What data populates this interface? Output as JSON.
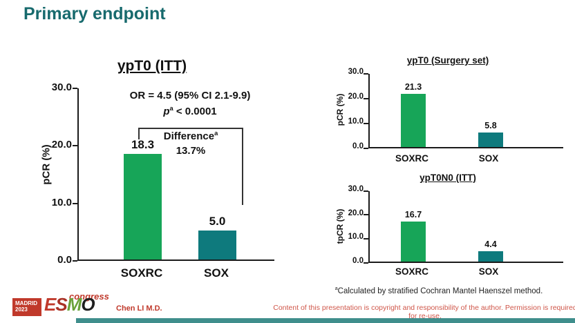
{
  "title": "Primary endpoint",
  "colors": {
    "accent_teal": "#176a6d",
    "bar_green": "#17a558",
    "bar_teal": "#0e7a7d",
    "red_text": "#c0392b"
  },
  "chart_data": [
    {
      "type": "bar",
      "title": "ypT0 (ITT)",
      "ylabel": "pCR (%)",
      "categories": [
        "SOXRC",
        "SOX"
      ],
      "values": [
        18.3,
        5.0
      ],
      "value_labels": [
        "18.3",
        "5.0"
      ],
      "ylim": [
        0,
        30
      ],
      "ytick_labels": [
        "30.0",
        "20.0",
        "10.0",
        "0.0"
      ],
      "bar_colors": [
        "#17a558",
        "#0e7a7d"
      ],
      "annotations": {
        "or_line": "OR = 4.5 (95% CI 2.1-9.9)",
        "p_prefix": "p",
        "p_sup": "a",
        "p_rest": " < 0.0001",
        "difference_label": "Difference",
        "difference_sup": "a",
        "difference_value": "13.7%"
      }
    },
    {
      "type": "bar",
      "title": "ypT0 (Surgery set)",
      "ylabel": "pCR (%)",
      "categories": [
        "SOXRC",
        "SOX"
      ],
      "values": [
        21.3,
        5.8
      ],
      "value_labels": [
        "21.3",
        "5.8"
      ],
      "ylim": [
        0,
        30
      ],
      "ytick_labels": [
        "30.0",
        "20.0",
        "10.0",
        "0.0"
      ],
      "bar_colors": [
        "#17a558",
        "#0e7a7d"
      ]
    },
    {
      "type": "bar",
      "title": "ypT0N0 (ITT)",
      "ylabel": "tpCR (%)",
      "categories": [
        "SOXRC",
        "SOX"
      ],
      "values": [
        16.7,
        4.4
      ],
      "value_labels": [
        "16.7",
        "4.4"
      ],
      "ylim": [
        0,
        30
      ],
      "ytick_labels": [
        "30.0",
        "20.0",
        "10.0",
        "0.0"
      ],
      "bar_colors": [
        "#17a558",
        "#0e7a7d"
      ]
    }
  ],
  "footnote": {
    "sup": "a",
    "text": "Calculated by stratified Cochran Mantel Haenszel method."
  },
  "footer": {
    "author": "Chen LI M.D.",
    "copyright": "Content of this presentation is copyright and responsibility of the author. Permission is required for re-use.",
    "logo": {
      "city": "MADRID",
      "year": "2023",
      "letters": [
        "E",
        "S",
        "M",
        "O"
      ],
      "congress": "congress"
    }
  }
}
